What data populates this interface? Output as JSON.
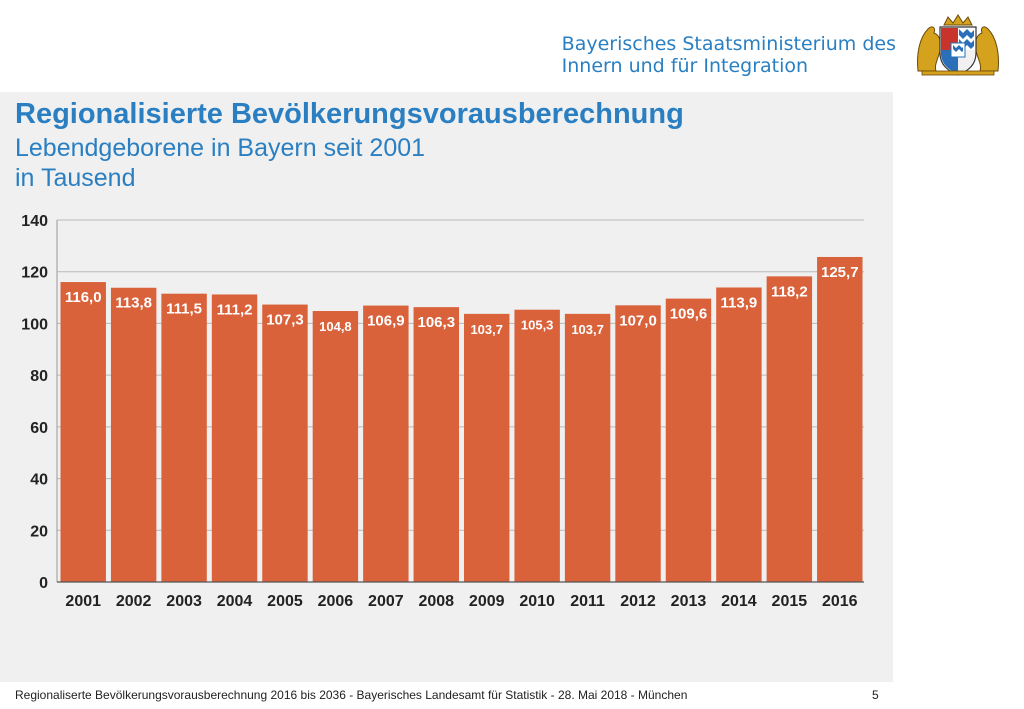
{
  "header": {
    "ministry_line1": "Bayerisches Staatsministerium des",
    "ministry_line2": "Innern und für Integration"
  },
  "slide": {
    "title": "Regionalisierte Bevölkerungsvorausberechnung",
    "subtitle_line1": "Lebendgeborene in Bayern seit 2001",
    "subtitle_line2": "in Tausend"
  },
  "chart_data": {
    "type": "bar",
    "categories": [
      "2001",
      "2002",
      "2003",
      "2004",
      "2005",
      "2006",
      "2007",
      "2008",
      "2009",
      "2010",
      "2011",
      "2012",
      "2013",
      "2014",
      "2015",
      "2016"
    ],
    "values": [
      116.0,
      113.8,
      111.5,
      111.2,
      107.3,
      104.8,
      106.9,
      106.3,
      103.7,
      105.3,
      103.7,
      107.0,
      109.6,
      113.9,
      118.2,
      125.7
    ],
    "value_labels": [
      "116,0",
      "113,8",
      "111,5",
      "111,2",
      "107,3",
      "104,8",
      "106,9",
      "106,3",
      "103,7",
      "105,3",
      "103,7",
      "107,0",
      "109,6",
      "113,9",
      "118,2",
      "125,7"
    ],
    "y_ticks": [
      "0",
      "20",
      "40",
      "60",
      "80",
      "100",
      "120",
      "140"
    ],
    "ylim": [
      0,
      140
    ],
    "grid": true,
    "bar_color": "#d9623b"
  },
  "footer": {
    "text": "Regionaliserte Bevölkerungsvorausberechnung 2016 bis 2036 -  Bayerisches Landesamt für Statistik  -  28. Mai 2018  -  München",
    "page_number": "5"
  }
}
